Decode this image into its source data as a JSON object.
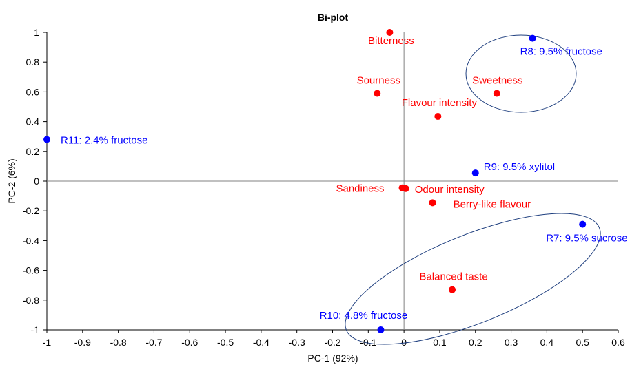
{
  "chart_data": {
    "type": "scatter",
    "title": "Bi-plot",
    "xlabel": "PC-1 (92%)",
    "ylabel": "PC-2 (6%)",
    "xlim": [
      -1,
      0.6
    ],
    "ylim": [
      -1,
      1
    ],
    "x_ticks": [
      "-1",
      "-0.9",
      "-0.8",
      "-0.7",
      "-0.6",
      "-0.5",
      "-0.4",
      "-0.3",
      "-0.2",
      "-0.1",
      "0",
      "0.1",
      "0.2",
      "0.3",
      "0.4",
      "0.5",
      "0.6"
    ],
    "y_ticks": [
      "-1",
      "-0.8",
      "-0.6",
      "-0.4",
      "-0.2",
      "0",
      "0.2",
      "0.4",
      "0.6",
      "0.8",
      "1"
    ],
    "colors": {
      "attributes": "#ff0000",
      "samples": "#0000ff",
      "ellipse": "#1f3f7f",
      "zero_lines": "#808080"
    },
    "series": [
      {
        "name": "attributes",
        "points": [
          {
            "label": "Bitterness",
            "x": -0.04,
            "y": 1.0
          },
          {
            "label": "Sourness",
            "x": -0.075,
            "y": 0.59
          },
          {
            "label": "Sweetness",
            "x": 0.26,
            "y": 0.59
          },
          {
            "label": "Flavour intensity",
            "x": 0.095,
            "y": 0.435
          },
          {
            "label": "Sandiness",
            "x": -0.005,
            "y": -0.045
          },
          {
            "label": "Odour intensity",
            "x": 0.005,
            "y": -0.05
          },
          {
            "label": "Berry-like flavour",
            "x": 0.08,
            "y": -0.145
          },
          {
            "label": "Balanced taste",
            "x": 0.135,
            "y": -0.73
          }
        ]
      },
      {
        "name": "samples",
        "points": [
          {
            "label": "R8: 9.5% fructose",
            "x": 0.36,
            "y": 0.96
          },
          {
            "label": "R11: 2.4% fructose",
            "x": -1.0,
            "y": 0.28
          },
          {
            "label": "R9: 9.5% xylitol",
            "x": 0.2,
            "y": 0.055
          },
          {
            "label": "R7: 9.5% sucrose",
            "x": 0.5,
            "y": -0.29
          },
          {
            "label": "R10: 4.8% fructose",
            "x": -0.065,
            "y": -1.0
          }
        ]
      }
    ]
  }
}
